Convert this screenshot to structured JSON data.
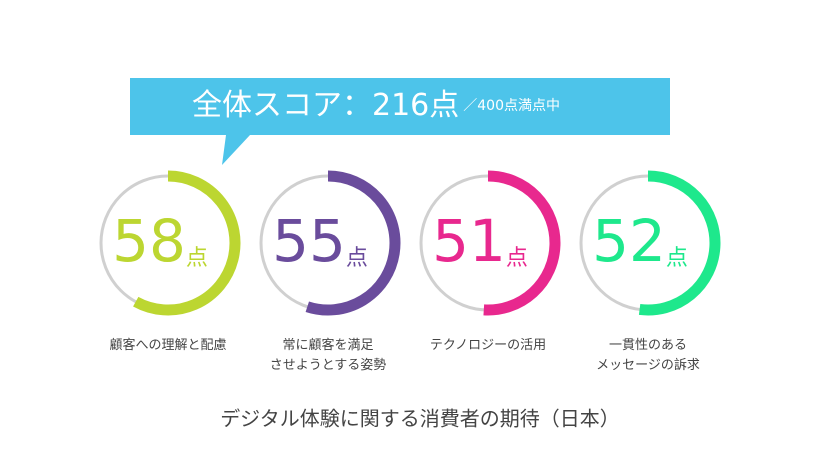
{
  "banner": {
    "text": "全体スコア：216点",
    "note": "／400点満点中"
  },
  "chart_data": {
    "type": "gauge",
    "title": "デジタル体験に関する消費者の期待（日本）",
    "categories": [
      "顧客への理解と配慮",
      "常に顧客を満足\nさせようとする姿勢",
      "テクノロジーの活用",
      "一貫性のある\nメッセージの訴求"
    ],
    "values": [
      58,
      55,
      51,
      52
    ],
    "unit": "点",
    "colors": [
      "#bcd631",
      "#6a4c9c",
      "#e8288e",
      "#1ee88c"
    ],
    "ylim": [
      0,
      100
    ]
  }
}
